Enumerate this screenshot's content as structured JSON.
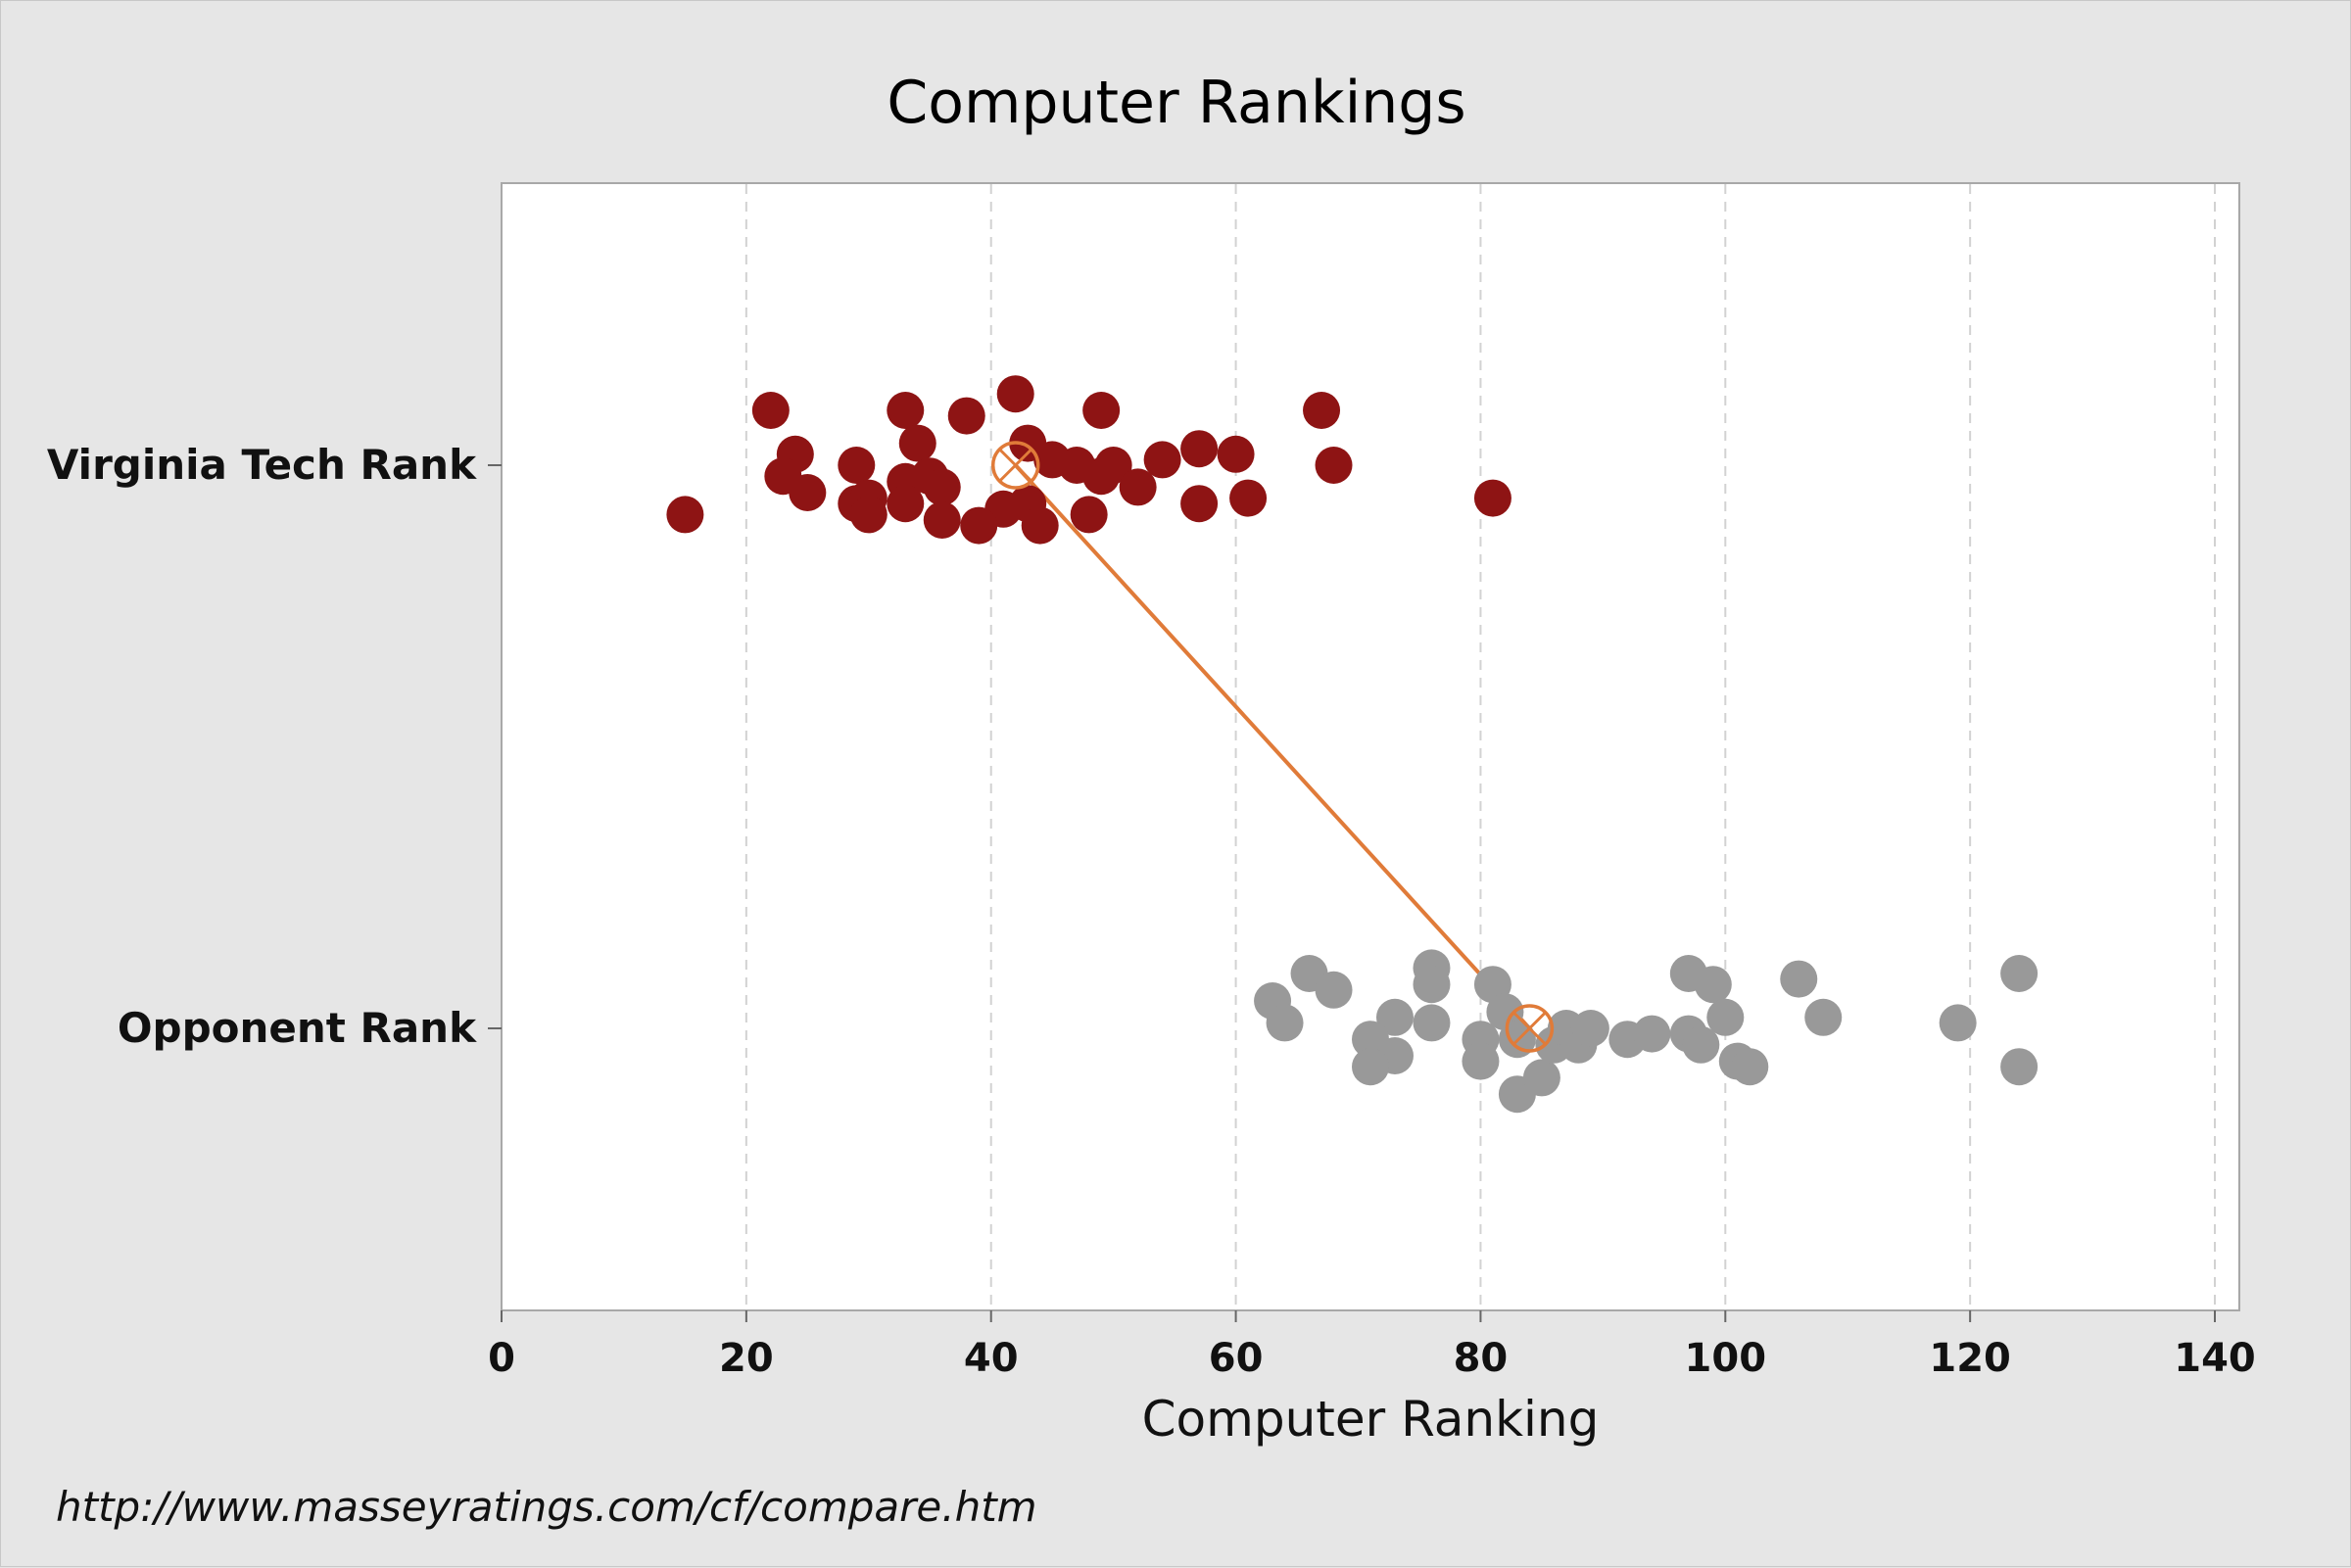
{
  "chart_data": {
    "type": "scatter",
    "title": "Computer Rankings",
    "xlabel": "Computer Ranking",
    "ylabel": "",
    "xlim": [
      0,
      142
    ],
    "xticks": [
      0,
      20,
      40,
      60,
      80,
      100,
      120,
      140
    ],
    "categories": [
      "Virginia Tech Rank",
      "Opponent Rank"
    ],
    "grid": "vertical dashed",
    "series": [
      {
        "name": "Virginia Tech Rank",
        "color": "#8e1414",
        "points": [
          [
            22,
            0.1
          ],
          [
            33,
            0.1
          ],
          [
            38,
            0.09
          ],
          [
            42,
            0.13
          ],
          [
            49,
            0.1
          ],
          [
            67,
            0.1
          ],
          [
            24,
            0.02
          ],
          [
            34,
            0.04
          ],
          [
            43,
            0.04
          ],
          [
            45,
            0.01
          ],
          [
            47,
            0.0
          ],
          [
            50,
            0.0
          ],
          [
            54,
            0.01
          ],
          [
            57,
            0.03
          ],
          [
            60,
            0.02
          ],
          [
            68,
            0.0
          ],
          [
            23,
            -0.02
          ],
          [
            29,
            0.0
          ],
          [
            33,
            -0.03
          ],
          [
            35,
            -0.02
          ],
          [
            36,
            -0.04
          ],
          [
            49,
            -0.02
          ],
          [
            52,
            -0.04
          ],
          [
            25,
            -0.05
          ],
          [
            29,
            -0.07
          ],
          [
            30,
            -0.06
          ],
          [
            33,
            -0.07
          ],
          [
            30,
            -0.09
          ],
          [
            41,
            -0.08
          ],
          [
            43,
            -0.07
          ],
          [
            48,
            -0.09
          ],
          [
            57,
            -0.07
          ],
          [
            61,
            -0.06
          ],
          [
            81,
            -0.06
          ],
          [
            15,
            -0.09
          ],
          [
            36,
            -0.1
          ],
          [
            39,
            -0.11
          ],
          [
            44,
            -0.11
          ]
        ],
        "mean_x": 42
      },
      {
        "name": "Opponent Rank",
        "color": "#999999",
        "points": [
          [
            66,
            0.1
          ],
          [
            68,
            0.07
          ],
          [
            63,
            0.05
          ],
          [
            64,
            0.01
          ],
          [
            76,
            0.11
          ],
          [
            76,
            0.08
          ],
          [
            73,
            0.02
          ],
          [
            76,
            0.01
          ],
          [
            71,
            -0.02
          ],
          [
            73,
            -0.05
          ],
          [
            71,
            -0.07
          ],
          [
            80,
            -0.02
          ],
          [
            80,
            -0.06
          ],
          [
            83,
            -0.12
          ],
          [
            85,
            -0.09
          ],
          [
            81,
            0.08
          ],
          [
            82,
            0.03
          ],
          [
            83,
            -0.02
          ],
          [
            86,
            -0.03
          ],
          [
            87,
            0.0
          ],
          [
            88,
            -0.03
          ],
          [
            89,
            0.0
          ],
          [
            92,
            -0.02
          ],
          [
            94,
            -0.01
          ],
          [
            97,
            0.1
          ],
          [
            99,
            0.08
          ],
          [
            97,
            -0.01
          ],
          [
            98,
            -0.03
          ],
          [
            100,
            0.02
          ],
          [
            101,
            -0.06
          ],
          [
            102,
            -0.07
          ],
          [
            106,
            0.09
          ],
          [
            108,
            0.02
          ],
          [
            119,
            0.01
          ],
          [
            124,
            0.1
          ],
          [
            124,
            -0.07
          ]
        ],
        "mean_x": 84
      }
    ],
    "mean_line_color": "#e07b39"
  },
  "footer": {
    "url": "http://www.masseyratings.com/cf/compare.htm"
  }
}
